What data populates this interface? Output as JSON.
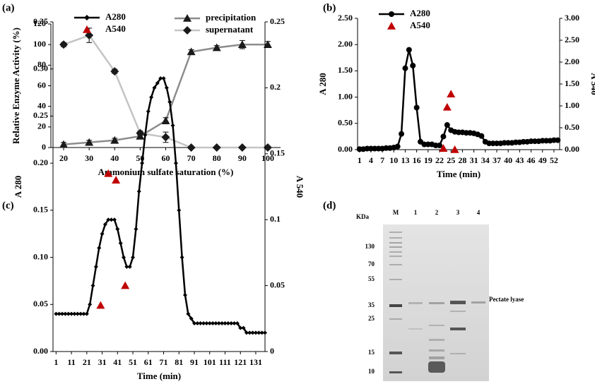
{
  "chart_data": [
    {
      "type": "line",
      "panel": "(a)",
      "xlabel": "Ammonium sulfate saturation (%)",
      "ylabel": "Relative Enzyme  Activity (%)",
      "x": [
        20,
        30,
        40,
        50,
        60,
        70,
        80,
        90,
        100
      ],
      "xlim": [
        15,
        105
      ],
      "xticks": [
        20,
        30,
        40,
        50,
        60,
        70,
        80,
        90,
        100
      ],
      "ylim": [
        0,
        120
      ],
      "yticks": [
        0,
        20,
        40,
        60,
        80,
        100,
        120
      ],
      "legend": "top right",
      "series": [
        {
          "name": "precipitation",
          "color": "#8c8c8c",
          "marker_color": "#1a1a1a",
          "marker": "triangle",
          "marker_size": 6,
          "values": [
            3,
            5,
            7,
            11,
            26,
            93,
            97,
            100,
            100
          ],
          "errors": [
            2,
            2,
            2,
            2,
            3,
            2,
            2,
            4,
            3
          ]
        },
        {
          "name": "supernatant",
          "color": "#c4c4c4",
          "marker_color": "#1a1a1a",
          "marker": "diamond",
          "marker_size": 6,
          "values": [
            100,
            109,
            74,
            14,
            10,
            0,
            0,
            0,
            0
          ],
          "errors": [
            2,
            7,
            2,
            2,
            5,
            0,
            0,
            0,
            0
          ]
        }
      ]
    },
    {
      "type": "line",
      "panel": "(b)",
      "xlabel": "Time (min)",
      "ylabel": "A 280",
      "y2label": "A 540",
      "x": [
        1,
        2,
        3,
        4,
        5,
        6,
        7,
        8,
        9,
        10,
        11,
        12,
        13,
        14,
        15,
        16,
        17,
        18,
        19,
        20,
        21,
        22,
        23,
        24,
        25,
        26,
        27,
        28,
        29,
        30,
        31,
        32,
        33,
        34,
        35,
        36,
        37,
        38,
        39,
        40,
        41,
        42,
        43,
        44,
        45,
        46,
        47,
        48,
        49,
        50,
        51,
        52,
        53
      ],
      "xlim": [
        0.5,
        53.5
      ],
      "xticks": [
        1,
        4,
        7,
        10,
        13,
        16,
        19,
        22,
        25,
        28,
        31,
        34,
        37,
        40,
        43,
        46,
        49,
        52
      ],
      "ylim": [
        0,
        2.5
      ],
      "yticks": [
        {
          "value": 0,
          "label": "0.00"
        },
        {
          "value": 0.5,
          "label": "0.50"
        },
        {
          "value": 1,
          "label": "1.00"
        },
        {
          "value": 1.5,
          "label": "1.50"
        },
        {
          "value": 2,
          "label": "2.00"
        },
        {
          "value": 2.5,
          "label": "2.50"
        }
      ],
      "y2lim": [
        0,
        3
      ],
      "y2ticks": [
        {
          "value": 0,
          "label": "0.00"
        },
        {
          "value": 0.5,
          "label": "0.50"
        },
        {
          "value": 1,
          "label": "1.00"
        },
        {
          "value": 1.5,
          "label": "1.50"
        },
        {
          "value": 2,
          "label": "2.00"
        },
        {
          "value": 2.5,
          "label": "2.50"
        },
        {
          "value": 3,
          "label": "3.00"
        }
      ],
      "legend": "top left",
      "series": [
        {
          "name": "A280",
          "color": "#000000",
          "marker": "circle",
          "marker_size": 4,
          "values": [
            0.01,
            0.01,
            0.02,
            0.02,
            0.02,
            0.02,
            0.02,
            0.03,
            0.03,
            0.04,
            0.06,
            0.3,
            1.55,
            1.9,
            1.6,
            0.8,
            0.15,
            0.1,
            0.1,
            0.1,
            0.08,
            0.08,
            0.25,
            0.47,
            0.37,
            0.34,
            0.33,
            0.33,
            0.32,
            0.32,
            0.31,
            0.29,
            0.26,
            0.15,
            0.12,
            0.12,
            0.12,
            0.12,
            0.13,
            0.13,
            0.13,
            0.14,
            0.14,
            0.15,
            0.15,
            0.16,
            0.16,
            0.16,
            0.17,
            0.17,
            0.17,
            0.18,
            0.18
          ]
        },
        {
          "name": "A540",
          "color": "#c00000",
          "marker": "triangle",
          "marker_size": 6,
          "line": false,
          "axis": "y2",
          "x": [
            23,
            24,
            25,
            26
          ],
          "values": [
            0.03,
            0.97,
            1.27,
            0
          ]
        }
      ]
    },
    {
      "type": "line",
      "panel": "(c)",
      "xlabel": "Time (min)",
      "ylabel": "A 280",
      "y2label": "A 540",
      "x": [
        1,
        3,
        5,
        7,
        9,
        11,
        13,
        15,
        17,
        19,
        21,
        23,
        25,
        27,
        29,
        31,
        33,
        35,
        37,
        39,
        41,
        43,
        45,
        47,
        49,
        51,
        53,
        55,
        57,
        59,
        61,
        63,
        65,
        67,
        69,
        71,
        73,
        75,
        77,
        79,
        81,
        83,
        85,
        87,
        89,
        91,
        93,
        95,
        97,
        99,
        101,
        103,
        105,
        107,
        109,
        111,
        113,
        115,
        117,
        119,
        121,
        123,
        125,
        127,
        129,
        131,
        133,
        135,
        137
      ],
      "xlim": [
        -1,
        137
      ],
      "xticks": [
        1,
        11,
        21,
        31,
        41,
        51,
        61,
        71,
        81,
        91,
        101,
        111,
        121,
        131
      ],
      "ylim": [
        0,
        0.35
      ],
      "yticks": [
        {
          "value": 0,
          "label": "0.00"
        },
        {
          "value": 0.05,
          "label": "0.05"
        },
        {
          "value": 0.1,
          "label": "0.10"
        },
        {
          "value": 0.15,
          "label": "0.15"
        },
        {
          "value": 0.2,
          "label": "0.20"
        },
        {
          "value": 0.25,
          "label": "0.25"
        },
        {
          "value": 0.3,
          "label": "0.30"
        },
        {
          "value": 0.35,
          "label": "0.35"
        }
      ],
      "y2lim": [
        0,
        0.25
      ],
      "y2ticks": [
        0,
        0.05,
        0.1,
        0.15,
        0.2,
        0.25
      ],
      "legend": "top left",
      "series": [
        {
          "name": "A280",
          "color": "#000000",
          "marker": "diamond",
          "marker_size": 3,
          "values": [
            0.04,
            0.04,
            0.04,
            0.04,
            0.04,
            0.04,
            0.04,
            0.04,
            0.04,
            0.04,
            0.04,
            0.05,
            0.07,
            0.09,
            0.11,
            0.125,
            0.135,
            0.14,
            0.14,
            0.14,
            0.13,
            0.115,
            0.1,
            0.09,
            0.09,
            0.1,
            0.13,
            0.17,
            0.2,
            0.23,
            0.255,
            0.27,
            0.28,
            0.285,
            0.29,
            0.29,
            0.28,
            0.265,
            0.24,
            0.2,
            0.15,
            0.1,
            0.06,
            0.04,
            0.035,
            0.03,
            0.03,
            0.03,
            0.03,
            0.03,
            0.03,
            0.03,
            0.03,
            0.03,
            0.03,
            0.03,
            0.03,
            0.03,
            0.03,
            0.03,
            0.025,
            0.025,
            0.02,
            0.02,
            0.02,
            0.02,
            0.02,
            0.02,
            0.02
          ]
        },
        {
          "name": "A540",
          "color": "#c00000",
          "marker": "triangle",
          "marker_size": 6,
          "line": false,
          "axis": "y2",
          "x": [
            30,
            35,
            40,
            46
          ],
          "values": [
            0.035,
            0.135,
            0.13,
            0.05
          ]
        }
      ]
    }
  ],
  "gel": {
    "panel": "(d)",
    "unit": "KDa",
    "lanes": [
      "M",
      "1",
      "2",
      "3",
      "4"
    ],
    "markers": [
      "130",
      "70",
      "55",
      "35",
      "25",
      "15",
      "10"
    ],
    "band_label": "Pectate lyase"
  }
}
